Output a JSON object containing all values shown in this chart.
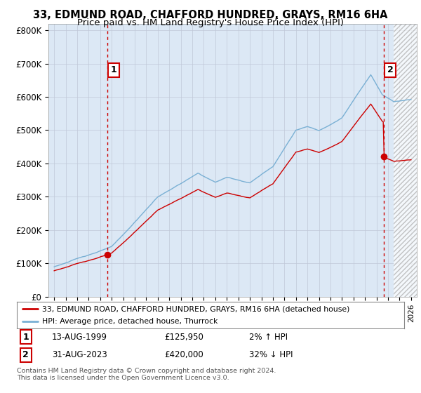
{
  "title": "33, EDMUND ROAD, CHAFFORD HUNDRED, GRAYS, RM16 6HA",
  "subtitle": "Price paid vs. HM Land Registry's House Price Index (HPI)",
  "line1_color": "#cc0000",
  "line2_color": "#7ab0d4",
  "bg_fill_color": "#dce8f5",
  "sale1_year": 1999.62,
  "sale1_price": 125950,
  "sale2_year": 2023.62,
  "sale2_price": 420000,
  "ylim": [
    0,
    820000
  ],
  "yticks": [
    0,
    100000,
    200000,
    300000,
    400000,
    500000,
    600000,
    700000,
    800000
  ],
  "ytick_labels": [
    "£0",
    "£100K",
    "£200K",
    "£300K",
    "£400K",
    "£500K",
    "£600K",
    "£700K",
    "£800K"
  ],
  "xmin": 1994.5,
  "xmax": 2026.5,
  "legend_line1": "33, EDMUND ROAD, CHAFFORD HUNDRED, GRAYS, RM16 6HA (detached house)",
  "legend_line2": "HPI: Average price, detached house, Thurrock",
  "table_row1": [
    "1",
    "13-AUG-1999",
    "£125,950",
    "2% ↑ HPI"
  ],
  "table_row2": [
    "2",
    "31-AUG-2023",
    "£420,000",
    "32% ↓ HPI"
  ],
  "footnote": "Contains HM Land Registry data © Crown copyright and database right 2024.\nThis data is licensed under the Open Government Licence v3.0.",
  "grid_color": "#c0c8d8",
  "hatch_start": 2024.5
}
